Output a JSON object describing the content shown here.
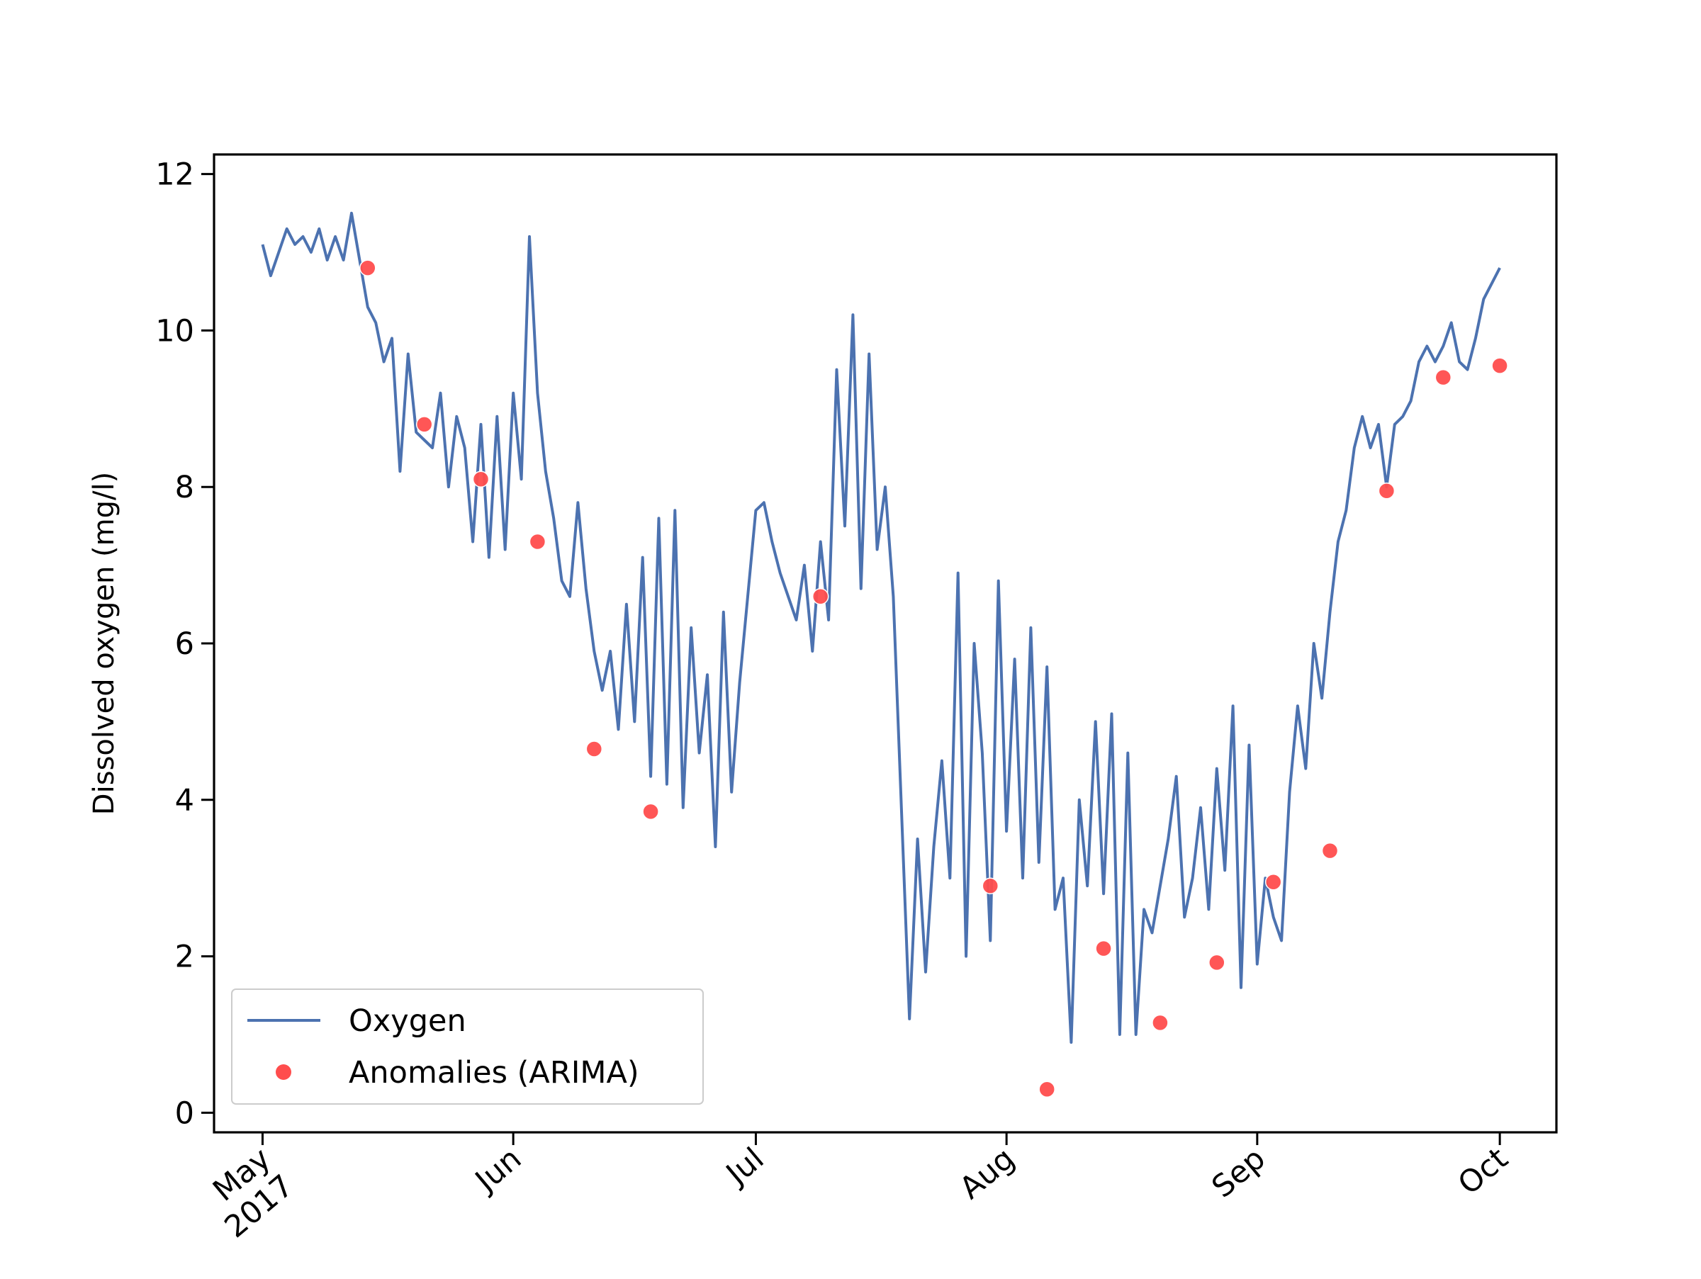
{
  "chart_data": {
    "type": "line",
    "title": "",
    "xlabel": "",
    "ylabel": "Dissolved oxygen (mg/l)",
    "xlim": [
      "2017-04-25",
      "2017-10-08"
    ],
    "ylim": [
      -0.25,
      12.25
    ],
    "grid": false,
    "legend": "lower-left",
    "x_ticks": [
      {
        "date": "2017-05-01",
        "label": "May",
        "label2": "2017"
      },
      {
        "date": "2017-06-01",
        "label": "Jun",
        "label2": ""
      },
      {
        "date": "2017-07-01",
        "label": "Jul",
        "label2": ""
      },
      {
        "date": "2017-08-01",
        "label": "Aug",
        "label2": ""
      },
      {
        "date": "2017-09-01",
        "label": "Sep",
        "label2": ""
      },
      {
        "date": "2017-10-01",
        "label": "Oct",
        "label2": ""
      }
    ],
    "y_ticks": [
      0,
      2,
      4,
      6,
      8,
      10,
      12
    ],
    "series": [
      {
        "name": "Oxygen",
        "color": "#4c72b0",
        "x": [
          "2017-05-01",
          "2017-05-02",
          "2017-05-03",
          "2017-05-04",
          "2017-05-05",
          "2017-05-06",
          "2017-05-07",
          "2017-05-08",
          "2017-05-09",
          "2017-05-10",
          "2017-05-11",
          "2017-05-12",
          "2017-05-13",
          "2017-05-14",
          "2017-05-15",
          "2017-05-16",
          "2017-05-17",
          "2017-05-18",
          "2017-05-19",
          "2017-05-20",
          "2017-05-21",
          "2017-05-22",
          "2017-05-23",
          "2017-05-24",
          "2017-05-25",
          "2017-05-26",
          "2017-05-27",
          "2017-05-28",
          "2017-05-29",
          "2017-05-30",
          "2017-05-31",
          "2017-06-01",
          "2017-06-02",
          "2017-06-03",
          "2017-06-04",
          "2017-06-05",
          "2017-06-06",
          "2017-06-07",
          "2017-06-08",
          "2017-06-09",
          "2017-06-10",
          "2017-06-11",
          "2017-06-12",
          "2017-06-13",
          "2017-06-14",
          "2017-06-15",
          "2017-06-16",
          "2017-06-17",
          "2017-06-18",
          "2017-06-19",
          "2017-06-20",
          "2017-06-21",
          "2017-06-22",
          "2017-06-23",
          "2017-06-24",
          "2017-06-25",
          "2017-06-26",
          "2017-06-27",
          "2017-06-28",
          "2017-06-29",
          "2017-06-30",
          "2017-07-01",
          "2017-07-02",
          "2017-07-03",
          "2017-07-04",
          "2017-07-05",
          "2017-07-06",
          "2017-07-07",
          "2017-07-08",
          "2017-07-09",
          "2017-07-10",
          "2017-07-11",
          "2017-07-12",
          "2017-07-13",
          "2017-07-14",
          "2017-07-15",
          "2017-07-16",
          "2017-07-17",
          "2017-07-18",
          "2017-07-19",
          "2017-07-20",
          "2017-07-21",
          "2017-07-22",
          "2017-07-23",
          "2017-07-24",
          "2017-07-25",
          "2017-07-26",
          "2017-07-27",
          "2017-07-28",
          "2017-07-29",
          "2017-07-30",
          "2017-07-31",
          "2017-08-01",
          "2017-08-02",
          "2017-08-03",
          "2017-08-04",
          "2017-08-05",
          "2017-08-06",
          "2017-08-07",
          "2017-08-08",
          "2017-08-09",
          "2017-08-10",
          "2017-08-11",
          "2017-08-12",
          "2017-08-13",
          "2017-08-14",
          "2017-08-15",
          "2017-08-16",
          "2017-08-17",
          "2017-08-18",
          "2017-08-19",
          "2017-08-20",
          "2017-08-21",
          "2017-08-22",
          "2017-08-23",
          "2017-08-24",
          "2017-08-25",
          "2017-08-26",
          "2017-08-27",
          "2017-08-28",
          "2017-08-29",
          "2017-08-30",
          "2017-08-31",
          "2017-09-01",
          "2017-09-02",
          "2017-09-03",
          "2017-09-04",
          "2017-09-05",
          "2017-09-06",
          "2017-09-07",
          "2017-09-08",
          "2017-09-09",
          "2017-09-10",
          "2017-09-11",
          "2017-09-12",
          "2017-09-13",
          "2017-09-14",
          "2017-09-15",
          "2017-09-16",
          "2017-09-17",
          "2017-09-18",
          "2017-09-19",
          "2017-09-20",
          "2017-09-21",
          "2017-09-22",
          "2017-09-23",
          "2017-09-24",
          "2017-09-25",
          "2017-09-26",
          "2017-09-27",
          "2017-09-28",
          "2017-09-29",
          "2017-09-30",
          "2017-10-01"
        ],
        "y": [
          11.1,
          10.7,
          11.0,
          11.3,
          11.1,
          11.2,
          11.0,
          11.3,
          10.9,
          11.2,
          10.9,
          11.5,
          10.9,
          10.3,
          10.1,
          9.6,
          9.9,
          8.2,
          9.7,
          8.7,
          8.6,
          8.5,
          9.2,
          8.0,
          8.9,
          8.5,
          7.3,
          8.8,
          7.1,
          8.9,
          7.2,
          9.2,
          8.1,
          11.2,
          9.2,
          8.2,
          7.6,
          6.8,
          6.6,
          7.8,
          6.7,
          5.9,
          5.4,
          5.9,
          4.9,
          6.5,
          5.0,
          7.1,
          4.3,
          7.6,
          4.2,
          7.7,
          3.9,
          6.2,
          4.6,
          5.6,
          3.4,
          6.4,
          4.1,
          5.5,
          6.6,
          7.7,
          7.8,
          7.3,
          6.9,
          6.6,
          6.3,
          7.0,
          5.9,
          7.3,
          6.3,
          9.5,
          7.5,
          10.2,
          6.7,
          9.7,
          7.2,
          8.0,
          6.6,
          3.9,
          1.2,
          3.5,
          1.8,
          3.4,
          4.5,
          3.0,
          6.9,
          2.0,
          6.0,
          4.6,
          2.2,
          6.8,
          3.6,
          5.8,
          3.0,
          6.2,
          3.2,
          5.7,
          2.6,
          3.0,
          0.9,
          4.0,
          2.9,
          5.0,
          2.8,
          5.1,
          1.0,
          4.6,
          1.0,
          2.6,
          2.3,
          2.9,
          3.5,
          4.3,
          2.5,
          3.0,
          3.9,
          2.6,
          4.4,
          3.1,
          5.2,
          1.6,
          4.7,
          1.9,
          3.0,
          2.5,
          2.2,
          4.1,
          5.2,
          4.4,
          6.0,
          5.3,
          6.4,
          7.3,
          7.7,
          8.5,
          8.9,
          8.5,
          8.8,
          8.0,
          8.8,
          8.9,
          9.1,
          9.6,
          9.8,
          9.6,
          9.8,
          10.1,
          9.6,
          9.5,
          9.9,
          10.4,
          10.6,
          10.8
        ]
      },
      {
        "name": "Anomalies (ARIMA)",
        "color": "#ff4d4d",
        "marker": "circle",
        "x": [
          "2017-05-14",
          "2017-05-21",
          "2017-05-28",
          "2017-06-04",
          "2017-06-11",
          "2017-06-18",
          "2017-07-09",
          "2017-07-30",
          "2017-08-06",
          "2017-08-13",
          "2017-08-20",
          "2017-08-27",
          "2017-09-03",
          "2017-09-10",
          "2017-09-17",
          "2017-09-24",
          "2017-10-01"
        ],
        "y": [
          10.8,
          8.8,
          8.1,
          7.3,
          4.65,
          3.85,
          6.6,
          2.9,
          0.3,
          2.1,
          1.15,
          1.92,
          2.95,
          3.35,
          7.95,
          9.4,
          9.55
        ]
      }
    ]
  }
}
